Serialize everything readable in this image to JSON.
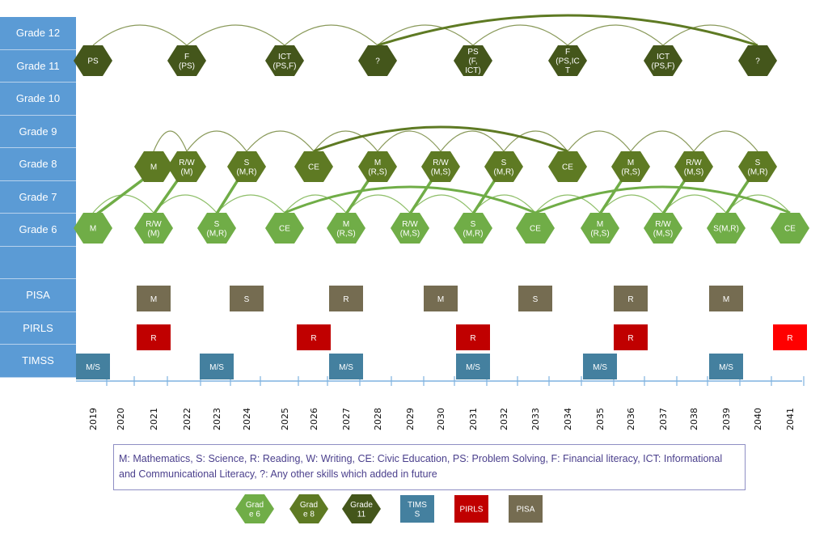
{
  "row_labels": [
    "Grade 12",
    "Grade 11",
    "Grade 10",
    "Grade 9",
    "Grade 8",
    "Grade 7",
    "Grade 6",
    "",
    "PISA",
    "PIRLS",
    "TIMSS"
  ],
  "years": [
    "2019",
    "2020",
    "2021",
    "2022",
    "2023",
    "2024",
    "2025",
    "2026",
    "2027",
    "2028",
    "2029",
    "2030",
    "2031",
    "2032",
    "2033",
    "2034",
    "2035",
    "2036",
    "2037",
    "2038",
    "2039",
    "2040",
    "2041"
  ],
  "colors": {
    "grade6": "#70ad47",
    "grade8": "#5e7a23",
    "grade11": "#44561b",
    "timss": "#44809f",
    "pirls": "#c00000",
    "pirls_light": "#ff0000",
    "pisa": "#756c51",
    "label_bg": "#5b9bd5"
  },
  "grade11": [
    {
      "year": "2019",
      "lines": [
        "PS"
      ]
    },
    {
      "year": "2022",
      "lines": [
        "F",
        "(PS)"
      ]
    },
    {
      "year": "2025",
      "lines": [
        "ICT",
        "(PS,F)"
      ]
    },
    {
      "year": "2028",
      "lines": [
        "?"
      ]
    },
    {
      "year": "2031",
      "lines": [
        "PS",
        "(F,",
        "ICT)"
      ]
    },
    {
      "year": "2034",
      "lines": [
        "F",
        "(PS,IC",
        "T"
      ]
    },
    {
      "year": "2037",
      "lines": [
        "ICT",
        "(PS,F)"
      ]
    },
    {
      "year": "2040",
      "lines": [
        "?"
      ]
    }
  ],
  "grade8": [
    {
      "year": "2021",
      "lines": [
        "M"
      ]
    },
    {
      "year": "2022",
      "lines": [
        "R/W",
        "(M)"
      ]
    },
    {
      "year": "2024",
      "lines": [
        "S",
        "(M,R)"
      ]
    },
    {
      "year": "2026",
      "lines": [
        "CE"
      ]
    },
    {
      "year": "2028",
      "lines": [
        "M",
        "(R,S)"
      ]
    },
    {
      "year": "2030",
      "lines": [
        "R/W",
        "(M,S)"
      ]
    },
    {
      "year": "2032",
      "lines": [
        "S",
        "(M,R)"
      ]
    },
    {
      "year": "2034",
      "lines": [
        "CE"
      ]
    },
    {
      "year": "2036",
      "lines": [
        "M",
        "(R,S)"
      ]
    },
    {
      "year": "2038",
      "lines": [
        "R/W",
        "(M,S)"
      ]
    },
    {
      "year": "2040",
      "lines": [
        "S",
        "(M,R)"
      ]
    }
  ],
  "grade6": [
    {
      "year": "2019",
      "lines": [
        "M"
      ]
    },
    {
      "year": "2021",
      "lines": [
        "R/W",
        "(M)"
      ]
    },
    {
      "year": "2023",
      "lines": [
        "S",
        "(M,R)"
      ]
    },
    {
      "year": "2025",
      "lines": [
        "CE"
      ]
    },
    {
      "year": "2027",
      "lines": [
        "M",
        "(R,S)"
      ]
    },
    {
      "year": "2029",
      "lines": [
        "R/W",
        "(M,S)"
      ]
    },
    {
      "year": "2031",
      "lines": [
        "S",
        "(M,R)"
      ]
    },
    {
      "year": "2033",
      "lines": [
        "CE"
      ]
    },
    {
      "year": "2035",
      "lines": [
        "M",
        "(R,S)"
      ]
    },
    {
      "year": "2037",
      "lines": [
        "R/W",
        "(M,S)"
      ]
    },
    {
      "year": "2039",
      "lines": [
        "S(M,R)"
      ]
    },
    {
      "year": "2041",
      "lines": [
        "CE"
      ]
    }
  ],
  "pisa": [
    {
      "year": "2021",
      "label": "M"
    },
    {
      "year": "2024",
      "label": "S"
    },
    {
      "year": "2027",
      "label": "R"
    },
    {
      "year": "2030",
      "label": "M"
    },
    {
      "year": "2033",
      "label": "S"
    },
    {
      "year": "2036",
      "label": "R"
    },
    {
      "year": "2039",
      "label": "M"
    }
  ],
  "pirls": [
    {
      "year": "2021",
      "label": "R"
    },
    {
      "year": "2026",
      "label": "R"
    },
    {
      "year": "2031",
      "label": "R"
    },
    {
      "year": "2036",
      "label": "R"
    },
    {
      "year": "2041",
      "label": "R"
    }
  ],
  "timss": [
    {
      "year": "2019",
      "label": "M/S"
    },
    {
      "year": "2023",
      "label": "M/S"
    },
    {
      "year": "2027",
      "label": "M/S"
    },
    {
      "year": "2031",
      "label": "M/S"
    },
    {
      "year": "2035",
      "label": "M/S"
    },
    {
      "year": "2039",
      "label": "M/S"
    }
  ],
  "legend_text": "M: Mathematics, S: Science, R: Reading, W: Writing, CE: Civic Education, PS: Problem Solving, F: Financial literacy, ICT: Informational and Communicational Literacy, ?: Any other skills which added in future",
  "legend_items": [
    {
      "kind": "hex",
      "color_key": "grade6",
      "lines": [
        "Grad",
        "e 6"
      ]
    },
    {
      "kind": "hex",
      "color_key": "grade8",
      "lines": [
        "Grad",
        "e 8"
      ]
    },
    {
      "kind": "hex",
      "color_key": "grade11",
      "lines": [
        "Grade",
        "11"
      ]
    },
    {
      "kind": "rect",
      "color_key": "timss",
      "lines": [
        "TIMS",
        "S"
      ]
    },
    {
      "kind": "rect",
      "color_key": "pirls",
      "lines": [
        "PIRLS"
      ]
    },
    {
      "kind": "rect",
      "color_key": "pisa",
      "lines": [
        "PISA"
      ]
    }
  ]
}
